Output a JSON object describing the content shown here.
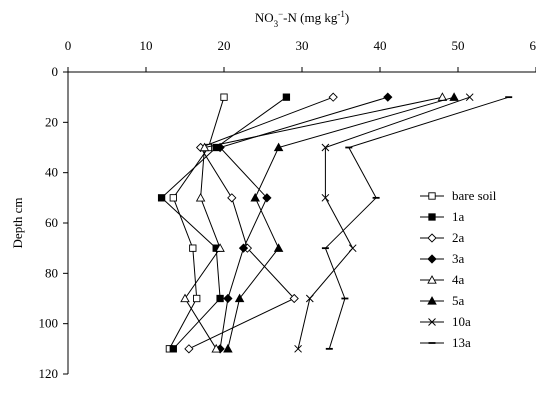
{
  "chart_data": {
    "type": "line",
    "orientation": "depth-profile",
    "x_axis_position": "top",
    "y_axis_inverted": true,
    "xlabel_parts": {
      "base": "NO",
      "sub": "3",
      "sup": "−",
      "mid": "-N (mg kg",
      "exp": "-1",
      "end": ")"
    },
    "ylabel": "Depth cm",
    "xlim": [
      0,
      60
    ],
    "ylim": [
      0,
      120
    ],
    "x_ticks": [
      "0",
      "10",
      "20",
      "30",
      "40",
      "50",
      "60"
    ],
    "y_ticks": [
      "0",
      "20",
      "40",
      "60",
      "80",
      "100",
      "120"
    ],
    "grid": false,
    "legend_position": "right",
    "depths": [
      10,
      30,
      50,
      70,
      90,
      110
    ],
    "series": [
      {
        "name": "bare soil",
        "marker": "square-open",
        "values": [
          20,
          18,
          13.5,
          16,
          16.5,
          13
        ]
      },
      {
        "name": "1a",
        "marker": "square-filled",
        "values": [
          28,
          19,
          12,
          19,
          19.5,
          13.5
        ]
      },
      {
        "name": "2a",
        "marker": "diamond-open",
        "values": [
          34,
          17,
          21,
          23,
          29,
          15.5
        ]
      },
      {
        "name": "3a",
        "marker": "diamond-filled",
        "values": [
          41,
          19.5,
          25.5,
          22.5,
          20.5,
          19.5
        ]
      },
      {
        "name": "4a",
        "marker": "triangle-open",
        "values": [
          48,
          17.5,
          17,
          19.5,
          15,
          19
        ]
      },
      {
        "name": "5a",
        "marker": "triangle-filled",
        "values": [
          49.5,
          27,
          24,
          27,
          22,
          20.5
        ]
      },
      {
        "name": "10a",
        "marker": "x",
        "values": [
          51.5,
          33,
          33,
          36.5,
          31,
          29.5
        ]
      },
      {
        "name": "13a",
        "marker": "dash",
        "values": [
          56.5,
          36,
          39.5,
          33,
          35.5,
          33.5
        ]
      }
    ]
  }
}
